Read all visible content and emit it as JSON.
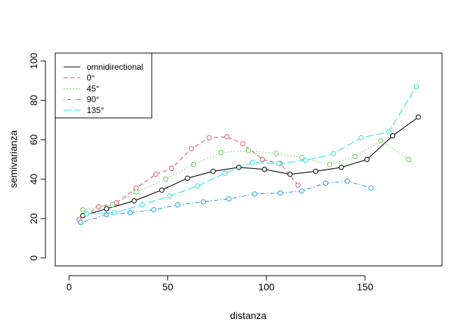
{
  "chart_data": {
    "type": "line",
    "title": "",
    "xlabel": "distanza",
    "ylabel": "semivarianza",
    "xlim": [
      -7,
      189
    ],
    "ylim": [
      -4,
      104
    ],
    "xticks": [
      0,
      50,
      100,
      150
    ],
    "yticks": [
      0,
      20,
      40,
      60,
      80,
      100
    ],
    "grid": false,
    "legend_position": "top-left",
    "series": [
      {
        "name": "omnidirectional",
        "color": "#000000",
        "dash": "solid",
        "x": [
          7,
          19,
          33,
          47,
          60,
          73,
          86,
          99,
          112,
          125,
          138,
          151,
          164,
          177
        ],
        "y": [
          21.5,
          25,
          29,
          34.5,
          40.5,
          44,
          46,
          45,
          42.5,
          44,
          46,
          50,
          62,
          71.5
        ]
      },
      {
        "name": "0°",
        "color": "#DF536B",
        "dash": "dashed",
        "x": [
          5,
          15,
          24,
          34,
          44,
          52,
          62,
          71,
          80,
          88,
          98,
          107,
          116
        ],
        "y": [
          19.5,
          26,
          28,
          35.5,
          42.5,
          45.5,
          55.5,
          61,
          61.5,
          58,
          50,
          48,
          37
        ]
      },
      {
        "name": "45°",
        "color": "#61D04F",
        "dash": "dotted",
        "x": [
          7,
          22,
          34,
          49,
          63,
          77,
          91,
          105,
          118,
          132,
          145,
          158,
          172
        ],
        "y": [
          24.5,
          27,
          33.5,
          40,
          47.5,
          53.5,
          54.5,
          53,
          51,
          47.5,
          51.5,
          59.5,
          50
        ]
      },
      {
        "name": "90°",
        "color": "#2297E6",
        "dash": "dotdash",
        "x": [
          6,
          19,
          31,
          43,
          55,
          68,
          81,
          94,
          107,
          118,
          130,
          141,
          153
        ],
        "y": [
          18,
          22,
          23,
          24.5,
          27,
          28.5,
          30,
          32.5,
          33,
          34,
          38,
          39,
          35.5
        ]
      },
      {
        "name": "135°",
        "color": "#28E2E5",
        "dash": "longdash",
        "x": [
          9,
          23,
          37,
          51,
          65,
          79,
          93,
          106,
          120,
          134,
          148,
          162,
          176
        ],
        "y": [
          22.5,
          23,
          27,
          31.5,
          36.5,
          43,
          48.5,
          48,
          49.5,
          53,
          61,
          64,
          87
        ]
      }
    ]
  }
}
